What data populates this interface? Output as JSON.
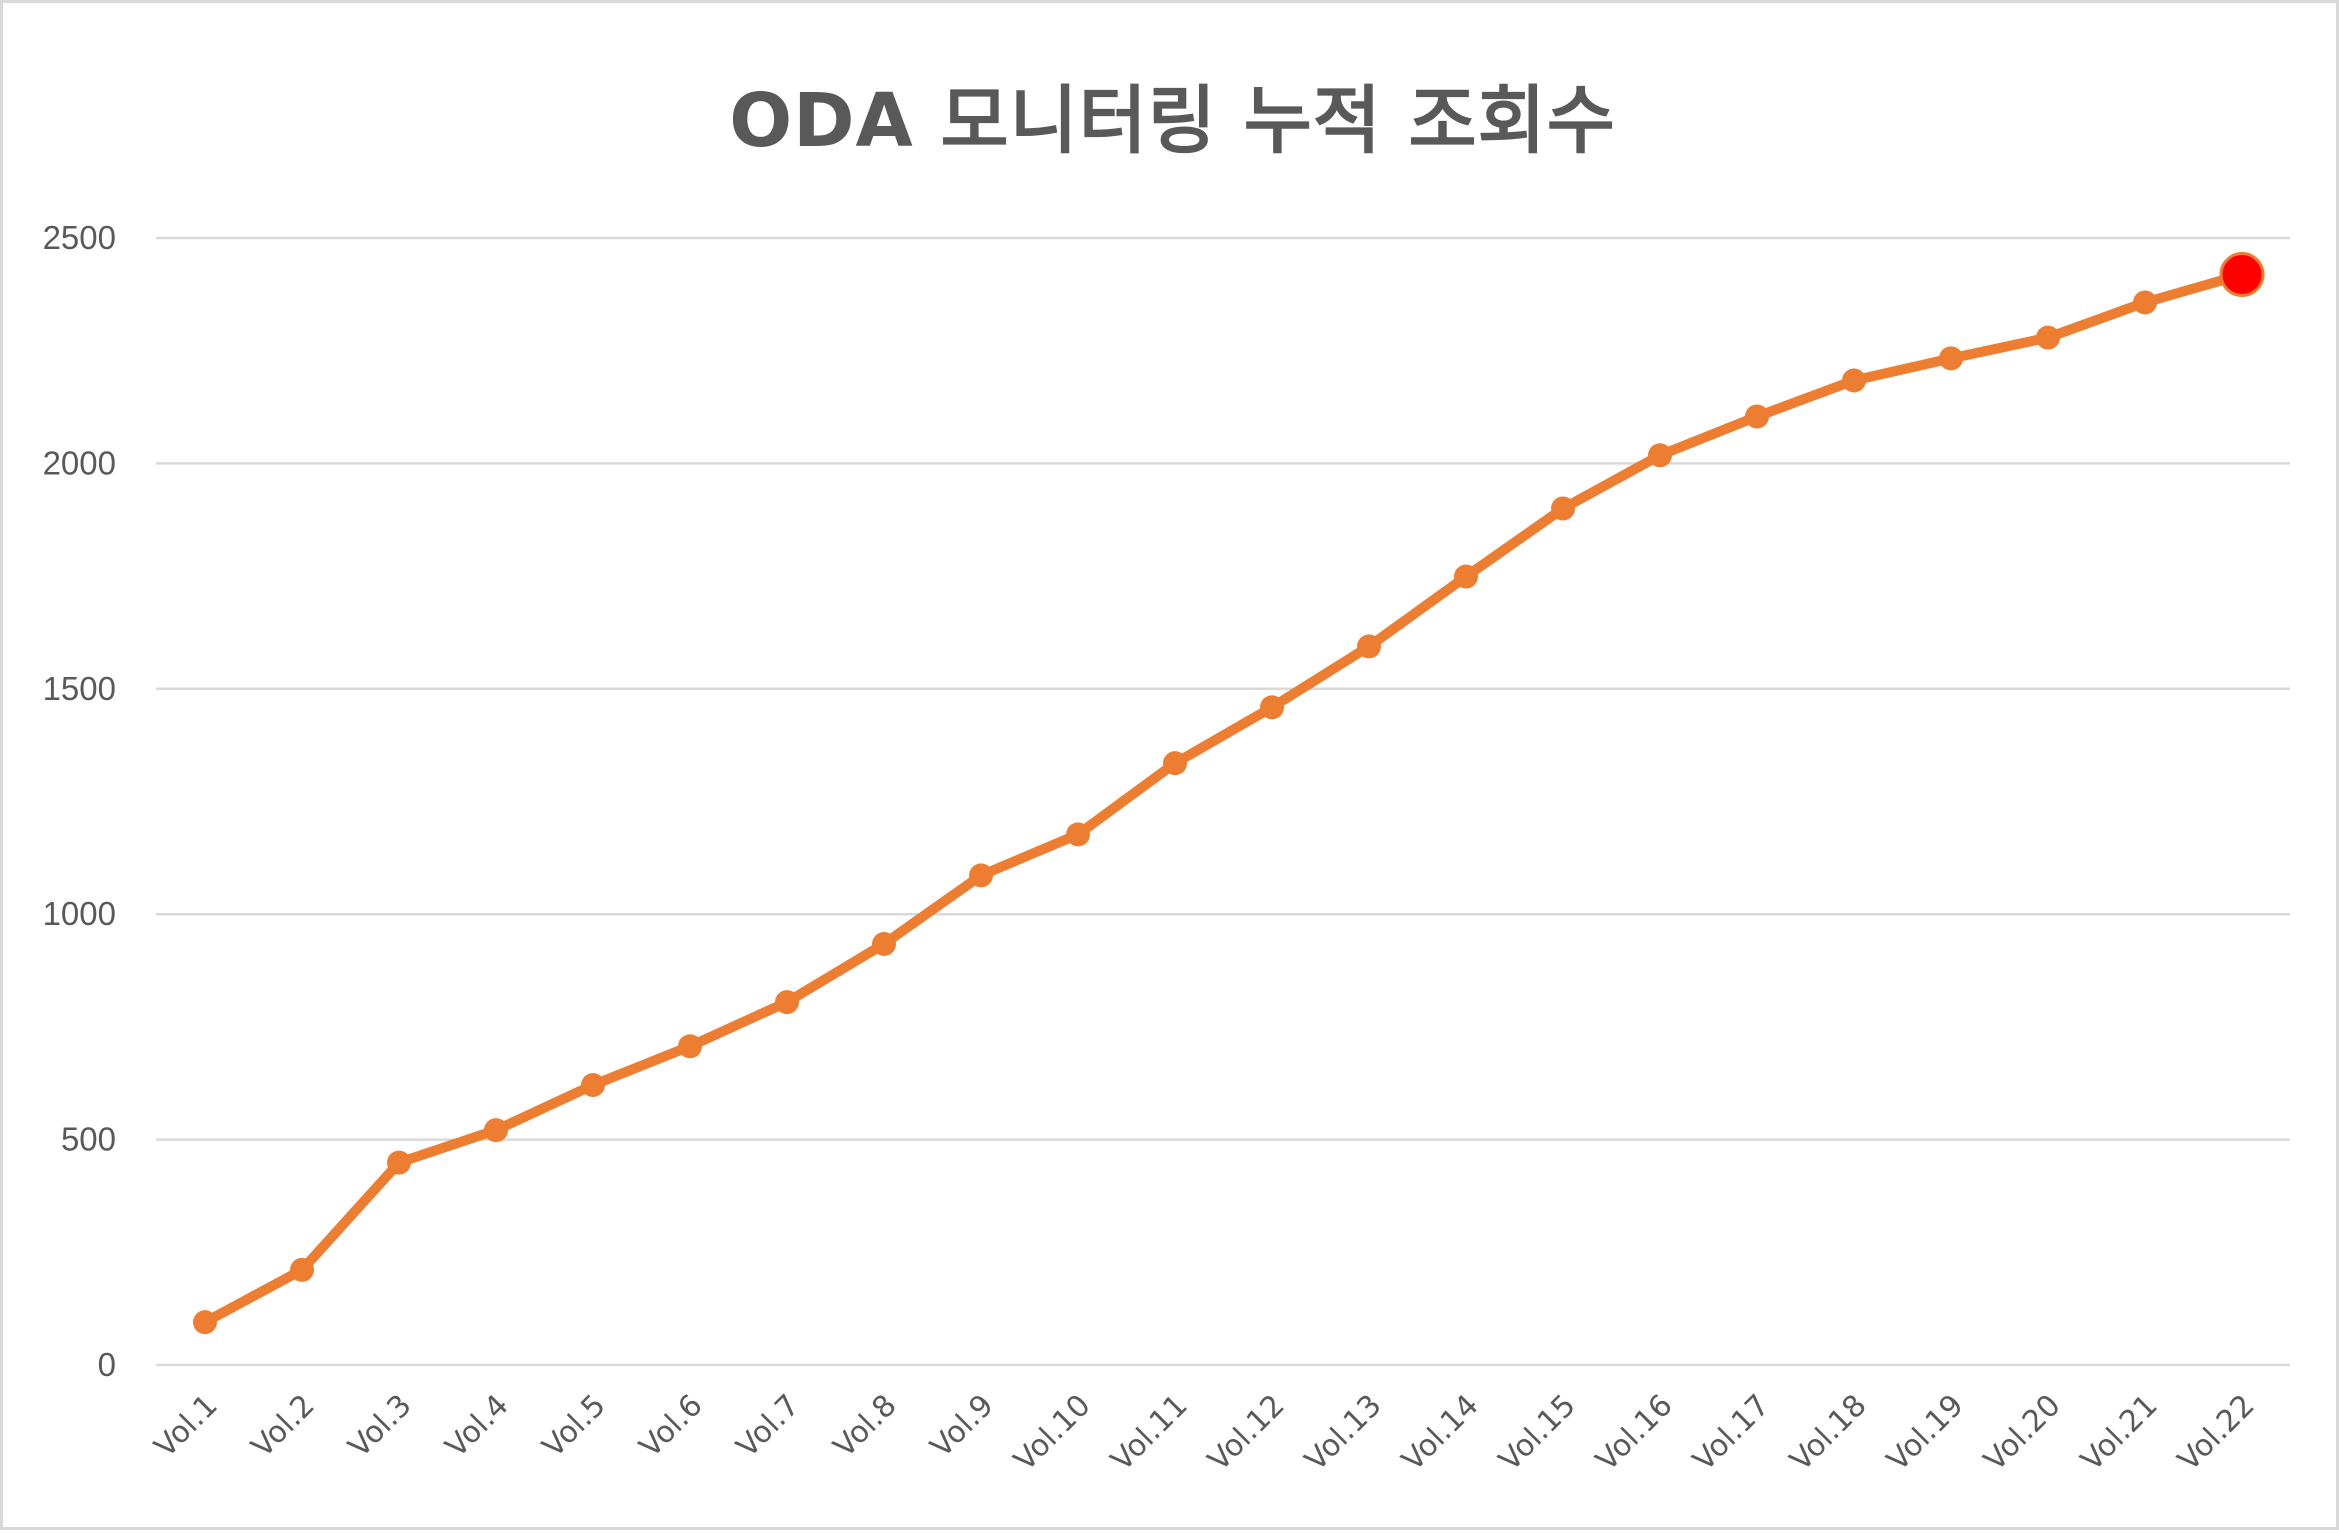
{
  "chart": {
    "title": "ODA 모니터링 누적 조회수"
  },
  "colors": {
    "line": "#ED7D31",
    "highlight_marker": "#FF0000",
    "gridline": "#D9D9D9",
    "text": "#595959",
    "border": "#D9D9D9"
  },
  "chart_data": {
    "type": "line",
    "title": "ODA 모니터링 누적 조회수",
    "xlabel": "",
    "ylabel": "",
    "categories": [
      "Vol.1",
      "Vol.2",
      "Vol.3",
      "Vol.4",
      "Vol.5",
      "Vol.6",
      "Vol.7",
      "Vol.8",
      "Vol.9",
      "Vol.10",
      "Vol.11",
      "Vol.12",
      "Vol.13",
      "Vol.14",
      "Vol.15",
      "Vol.16",
      "Vol.17",
      "Vol.18",
      "Vol.19",
      "Vol.20",
      "Vol.21",
      "Vol.22"
    ],
    "series": [
      {
        "name": "누적 조회수",
        "values": [
          95,
          211,
          449,
          521,
          621,
          707,
          805,
          934,
          1086,
          1177,
          1335,
          1459,
          1594,
          1749,
          1900,
          2018,
          2104,
          2184,
          2233,
          2279,
          2357,
          2419
        ]
      }
    ],
    "highlight_point": {
      "category": "Vol.22",
      "value": 2419,
      "color": "#FF0000"
    },
    "ylim": [
      0,
      2500
    ],
    "yticks": [
      0,
      500,
      1000,
      1500,
      2000,
      2500
    ],
    "ytick_labels": [
      "0",
      "500",
      "1000",
      "1500",
      "2000",
      "2500"
    ],
    "grid": true,
    "legend": "none",
    "xtick_rotation": -45
  }
}
